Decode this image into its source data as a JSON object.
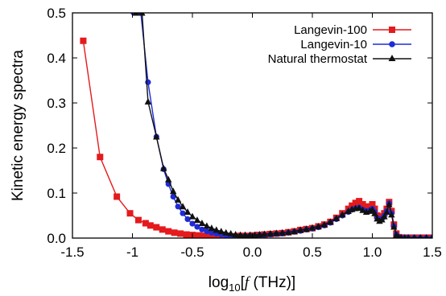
{
  "chart_data": {
    "type": "line",
    "xlabel_prefix": "log",
    "xlabel_sub": "10",
    "xlabel_open": "[",
    "xlabel_var": "f",
    "xlabel_unit": " (THz)]",
    "ylabel": "Kinetic energy spectra",
    "xlim": [
      -1.5,
      1.5
    ],
    "ylim": [
      0.0,
      0.5
    ],
    "xticks": [
      "-1.5",
      "-1",
      "-0.5",
      "0.0",
      "0.5",
      "1.0",
      "1.5"
    ],
    "xtick_values": [
      -1.5,
      -1.0,
      -0.5,
      0.0,
      0.5,
      1.0,
      1.5
    ],
    "yticks": [
      "0.0",
      "0.1",
      "0.2",
      "0.3",
      "0.4",
      "0.5"
    ],
    "ytick_values": [
      0.0,
      0.1,
      0.2,
      0.3,
      0.4,
      0.5
    ],
    "legend_position": "top-right",
    "grid": false,
    "series": [
      {
        "name": "Langevin-100",
        "color": "#e41a1c",
        "marker": "square",
        "x": [
          -1.41,
          -1.27,
          -1.13,
          -1.02,
          -0.95,
          -0.89,
          -0.85,
          -0.8,
          -0.75,
          -0.7,
          -0.65,
          -0.6,
          -0.55,
          -0.5,
          -0.45,
          -0.4,
          -0.35,
          -0.3,
          -0.25,
          -0.2,
          -0.15,
          -0.1,
          -0.05,
          0.0,
          0.05,
          0.1,
          0.15,
          0.2,
          0.25,
          0.3,
          0.35,
          0.4,
          0.45,
          0.5,
          0.55,
          0.6,
          0.65,
          0.7,
          0.75,
          0.8,
          0.83,
          0.86,
          0.89,
          0.92,
          0.95,
          0.98,
          1.0,
          1.02,
          1.04,
          1.06,
          1.08,
          1.1,
          1.12,
          1.14,
          1.16,
          1.18,
          1.2,
          1.22,
          1.24,
          1.27,
          1.3,
          1.35,
          1.4,
          1.45,
          1.5
        ],
        "y": [
          0.438,
          0.18,
          0.092,
          0.055,
          0.04,
          0.033,
          0.028,
          0.024,
          0.019,
          0.015,
          0.012,
          0.01,
          0.008,
          0.007,
          0.006,
          0.005,
          0.004,
          0.004,
          0.004,
          0.004,
          0.004,
          0.005,
          0.005,
          0.006,
          0.007,
          0.008,
          0.009,
          0.01,
          0.011,
          0.013,
          0.015,
          0.018,
          0.02,
          0.022,
          0.026,
          0.03,
          0.036,
          0.045,
          0.055,
          0.065,
          0.072,
          0.078,
          0.082,
          0.075,
          0.07,
          0.07,
          0.075,
          0.065,
          0.05,
          0.045,
          0.048,
          0.055,
          0.065,
          0.08,
          0.06,
          0.03,
          0.01,
          0.002,
          0.001,
          0.001,
          0.001,
          0.001,
          0.001,
          0.001,
          0.001
        ]
      },
      {
        "name": "Langevin-10",
        "color": "#1f2bd6",
        "marker": "circle",
        "x": [
          -0.99,
          -0.93,
          -0.87,
          -0.8,
          -0.74,
          -0.7,
          -0.66,
          -0.62,
          -0.58,
          -0.54,
          -0.5,
          -0.46,
          -0.42,
          -0.38,
          -0.34,
          -0.3,
          -0.26,
          -0.22,
          -0.18,
          -0.14,
          -0.1,
          -0.06,
          -0.02,
          0.02,
          0.06,
          0.1,
          0.15,
          0.2,
          0.25,
          0.3,
          0.35,
          0.4,
          0.45,
          0.5,
          0.55,
          0.6,
          0.65,
          0.7,
          0.75,
          0.8,
          0.83,
          0.86,
          0.89,
          0.92,
          0.95,
          0.98,
          1.0,
          1.02,
          1.04,
          1.06,
          1.08,
          1.1,
          1.12,
          1.14,
          1.16,
          1.18,
          1.2,
          1.22,
          1.24,
          1.27,
          1.3,
          1.35,
          1.4,
          1.45,
          1.5
        ],
        "y": [
          0.5,
          0.5,
          0.346,
          0.225,
          0.153,
          0.12,
          0.092,
          0.07,
          0.055,
          0.042,
          0.032,
          0.025,
          0.019,
          0.015,
          0.012,
          0.01,
          0.008,
          0.006,
          0.005,
          0.004,
          0.004,
          0.004,
          0.005,
          0.005,
          0.006,
          0.007,
          0.008,
          0.009,
          0.01,
          0.012,
          0.014,
          0.016,
          0.019,
          0.021,
          0.024,
          0.028,
          0.034,
          0.042,
          0.05,
          0.058,
          0.063,
          0.066,
          0.068,
          0.063,
          0.06,
          0.062,
          0.065,
          0.058,
          0.045,
          0.04,
          0.043,
          0.05,
          0.06,
          0.077,
          0.055,
          0.027,
          0.008,
          0.002,
          0.001,
          0.001,
          0.001,
          0.001,
          0.001,
          0.001,
          0.001
        ]
      },
      {
        "name": "Natural thermostat",
        "color": "#111111",
        "marker": "triangle",
        "x": [
          -0.97,
          -0.92,
          -0.87,
          -0.8,
          -0.74,
          -0.7,
          -0.66,
          -0.62,
          -0.58,
          -0.54,
          -0.5,
          -0.46,
          -0.42,
          -0.38,
          -0.34,
          -0.3,
          -0.26,
          -0.22,
          -0.18,
          -0.14,
          -0.1,
          -0.06,
          -0.02,
          0.02,
          0.06,
          0.1,
          0.15,
          0.2,
          0.25,
          0.3,
          0.35,
          0.4,
          0.45,
          0.5,
          0.55,
          0.6,
          0.65,
          0.7,
          0.75,
          0.8,
          0.83,
          0.86,
          0.89,
          0.92,
          0.95,
          0.98,
          1.0,
          1.02,
          1.04,
          1.06,
          1.08,
          1.1,
          1.12,
          1.14,
          1.16,
          1.18,
          1.2,
          1.22,
          1.24,
          1.27,
          1.3,
          1.35,
          1.4,
          1.45,
          1.5
        ],
        "y": [
          0.5,
          0.5,
          0.303,
          0.225,
          0.155,
          0.13,
          0.104,
          0.085,
          0.07,
          0.058,
          0.048,
          0.04,
          0.033,
          0.027,
          0.022,
          0.018,
          0.015,
          0.012,
          0.01,
          0.008,
          0.007,
          0.007,
          0.007,
          0.007,
          0.008,
          0.009,
          0.01,
          0.011,
          0.012,
          0.013,
          0.015,
          0.018,
          0.02,
          0.023,
          0.026,
          0.03,
          0.036,
          0.044,
          0.052,
          0.06,
          0.064,
          0.066,
          0.067,
          0.062,
          0.058,
          0.06,
          0.063,
          0.055,
          0.043,
          0.038,
          0.041,
          0.048,
          0.058,
          0.075,
          0.052,
          0.025,
          0.007,
          0.002,
          0.001,
          0.001,
          0.001,
          0.001,
          0.001,
          0.001,
          0.001
        ]
      }
    ]
  }
}
